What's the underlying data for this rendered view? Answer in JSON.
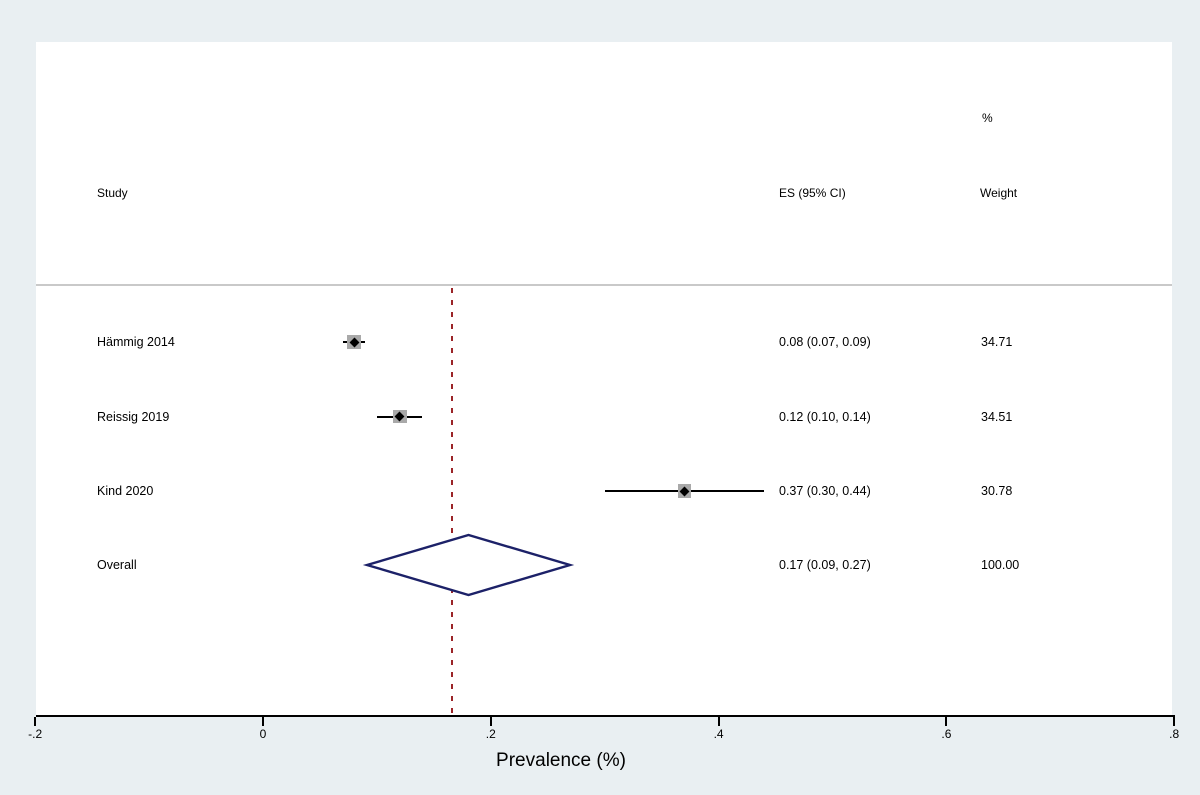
{
  "header": {
    "study": "Study",
    "es": "ES (95% CI)",
    "percent": "%",
    "weight": "Weight"
  },
  "chart_data": {
    "type": "scatter",
    "chart_kind": "forest-plot (meta-analysis)",
    "title": "",
    "xlabel": "Prevalence (%)",
    "ylabel": "",
    "xlim": [
      -0.2,
      0.8
    ],
    "x_ticks": [
      -0.2,
      0,
      0.2,
      0.4,
      0.6,
      0.8
    ],
    "x_tick_labels": [
      "-.2",
      "0",
      ".2",
      ".4",
      ".6",
      ".8"
    ],
    "grid": false,
    "legend": false,
    "reference_line_x": 0.166,
    "studies": [
      {
        "label": "Hämmig 2014",
        "es": 0.08,
        "ci_low": 0.07,
        "ci_high": 0.09,
        "es_text": "0.08 (0.07, 0.09)",
        "weight": 34.71,
        "weight_text": "34.71"
      },
      {
        "label": "Reissig 2019",
        "es": 0.12,
        "ci_low": 0.1,
        "ci_high": 0.14,
        "es_text": "0.12 (0.10, 0.14)",
        "weight": 34.51,
        "weight_text": "34.51"
      },
      {
        "label": "Kind 2020",
        "es": 0.37,
        "ci_low": 0.3,
        "ci_high": 0.44,
        "es_text": "0.37 (0.30, 0.44)",
        "weight": 30.78,
        "weight_text": "30.78"
      }
    ],
    "overall": {
      "label": "Overall",
      "es": 0.17,
      "ci_low": 0.09,
      "ci_high": 0.27,
      "es_text": "0.17 (0.09, 0.27)",
      "weight": 100.0,
      "weight_text": "100.00"
    }
  },
  "colors": {
    "background": "#e9eff2",
    "plot_background": "#ffffff",
    "axis": "#000000",
    "separator": "#c9c9c9",
    "ci_line": "#000000",
    "weight_box": "#a9a9a9",
    "point_marker": "#000000",
    "diamond_outline": "#1c2168",
    "diamond_fill": "#ffffff",
    "reference_line": "#9b2428",
    "text": "#000000"
  }
}
